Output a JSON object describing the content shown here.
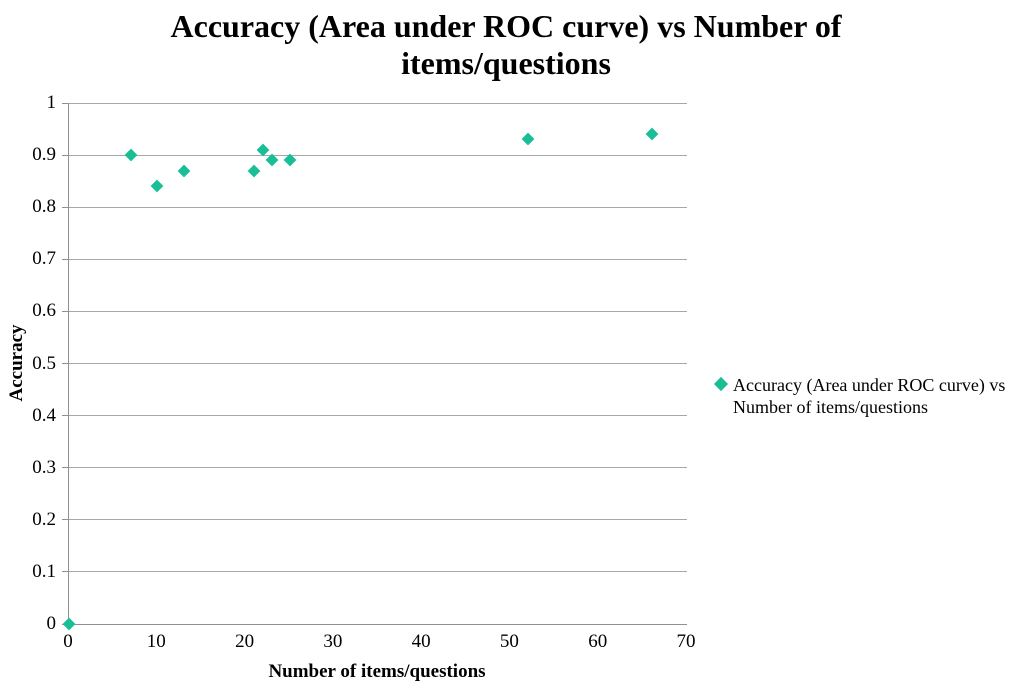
{
  "title_lines": [
    "Accuracy (Area under ROC curve) vs Number of",
    "items/questions"
  ],
  "legend": {
    "lines": [
      "Accuracy (Area under ROC curve) vs",
      "Number of items/questions"
    ]
  },
  "colors": {
    "marker": "#1abe96",
    "gridline": "#a8a8a8",
    "axis": "#8f8f8f",
    "text": "#000000"
  },
  "chart_data": {
    "type": "scatter",
    "title": "Accuracy (Area under ROC curve) vs Number of items/questions",
    "xlabel": "Number of items/questions",
    "ylabel": "Accuracy",
    "xlim": [
      0,
      70
    ],
    "ylim": [
      0,
      1
    ],
    "x_ticks": [
      0,
      10,
      20,
      30,
      40,
      50,
      60,
      70
    ],
    "x_tick_labels": [
      "0",
      "10",
      "20",
      "30",
      "40",
      "50",
      "60",
      "70"
    ],
    "y_ticks": [
      0,
      0.1,
      0.2,
      0.3,
      0.4,
      0.5,
      0.6,
      0.7,
      0.8,
      0.9,
      1
    ],
    "y_tick_labels": [
      "0",
      "0.1",
      "0.2",
      "0.3",
      "0.4",
      "0.5",
      "0.6",
      "0.7",
      "0.8",
      "0.9",
      "1"
    ],
    "grid": "horizontal",
    "legend_position": "right",
    "series": [
      {
        "name": "Accuracy (Area under ROC curve) vs Number of items/questions",
        "marker": "diamond",
        "color": "#1abe96",
        "points": [
          [
            0,
            0
          ],
          [
            7,
            0.9
          ],
          [
            10,
            0.84
          ],
          [
            13,
            0.87
          ],
          [
            21,
            0.87
          ],
          [
            22,
            0.91
          ],
          [
            23,
            0.89
          ],
          [
            25,
            0.89
          ],
          [
            52,
            0.93
          ],
          [
            66,
            0.94
          ]
        ]
      }
    ]
  }
}
